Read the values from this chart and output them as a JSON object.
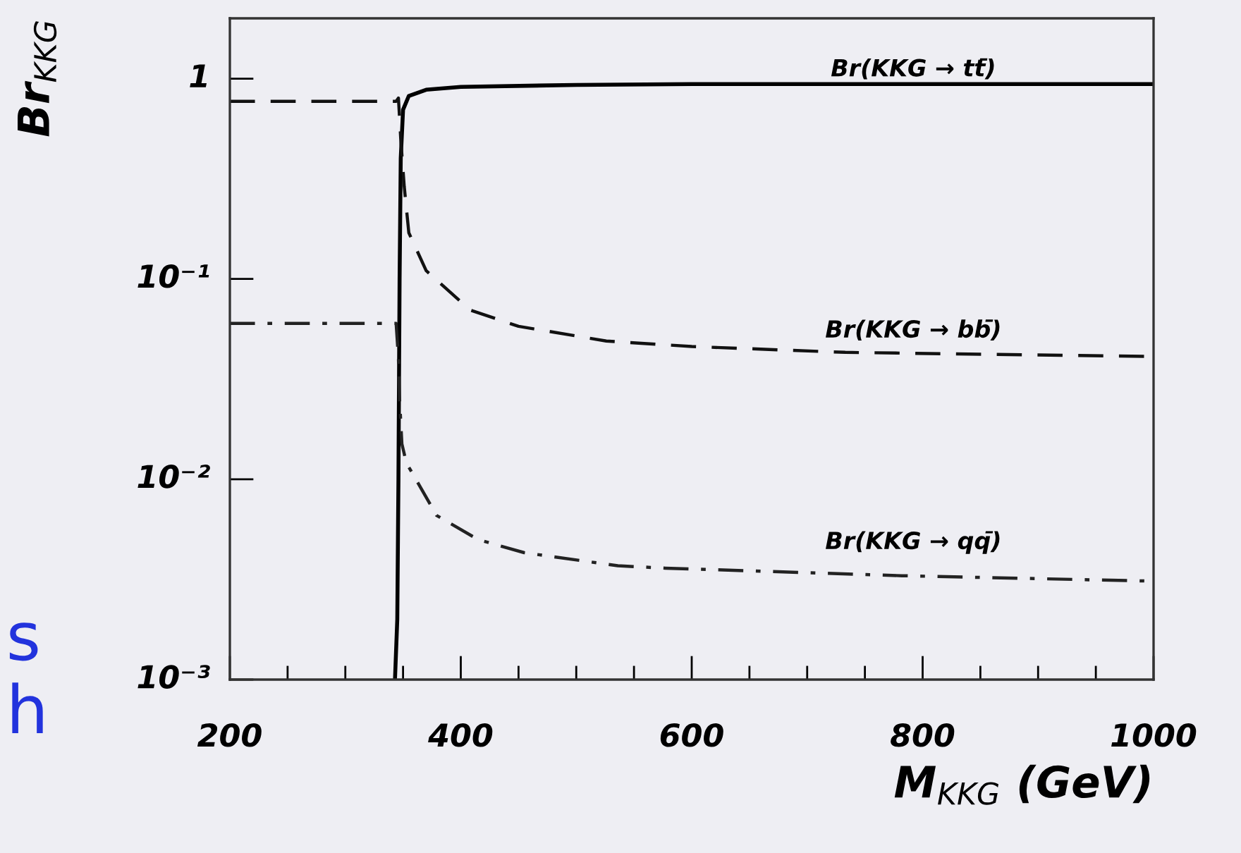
{
  "chart_data": {
    "type": "line",
    "xlabel": "M$_{KKG}$ (GeV)",
    "ylabel": "Br$_{KKG}$",
    "log": "y",
    "xlim": [
      200,
      1000
    ],
    "xticks": [
      200,
      400,
      600,
      800,
      1000
    ],
    "ylim": [
      0.001,
      2
    ],
    "yticks": [
      {
        "value": 0.001,
        "label": "10⁻³"
      },
      {
        "value": 0.01,
        "label": "10⁻²"
      },
      {
        "value": 0.1,
        "label": "10⁻¹"
      },
      1
    ],
    "grid": false,
    "marker": "none",
    "series": [
      {
        "color": "#000000",
        "line_style": "solid",
        "x": [
          343,
          345,
          346,
          347,
          348,
          350,
          355,
          370,
          400,
          500,
          600,
          1000
        ],
        "values": [
          0.001,
          0.002,
          0.01,
          0.1,
          0.4,
          0.7,
          0.82,
          0.88,
          0.91,
          0.93,
          0.94,
          0.94
        ]
      },
      {
        "color": "#111111",
        "line_style": "dashed",
        "x": [
          200,
          344,
          346,
          348,
          351,
          355,
          370,
          408,
          450,
          526,
          600,
          733,
          1000
        ],
        "values": [
          0.77,
          0.77,
          0.8,
          0.5,
          0.29,
          0.17,
          0.11,
          0.07,
          0.058,
          0.049,
          0.046,
          0.043,
          0.041
        ]
      },
      {
        "color": "#222222",
        "line_style": "dashdot",
        "x": [
          200,
          344,
          346,
          347,
          349,
          353,
          359,
          379,
          415,
          455,
          536,
          577,
          782,
          1000
        ],
        "values": [
          0.06,
          0.06,
          0.04,
          0.025,
          0.015,
          0.012,
          0.0105,
          0.0066,
          0.005,
          0.0043,
          0.0037,
          0.0036,
          0.0033,
          0.0031
        ]
      }
    ],
    "annotations": [
      "Br(KKG → tt̄)",
      "Br(KKG → bb̄)",
      "Br(KKG → qq̄)",
      "s",
      "h"
    ]
  }
}
